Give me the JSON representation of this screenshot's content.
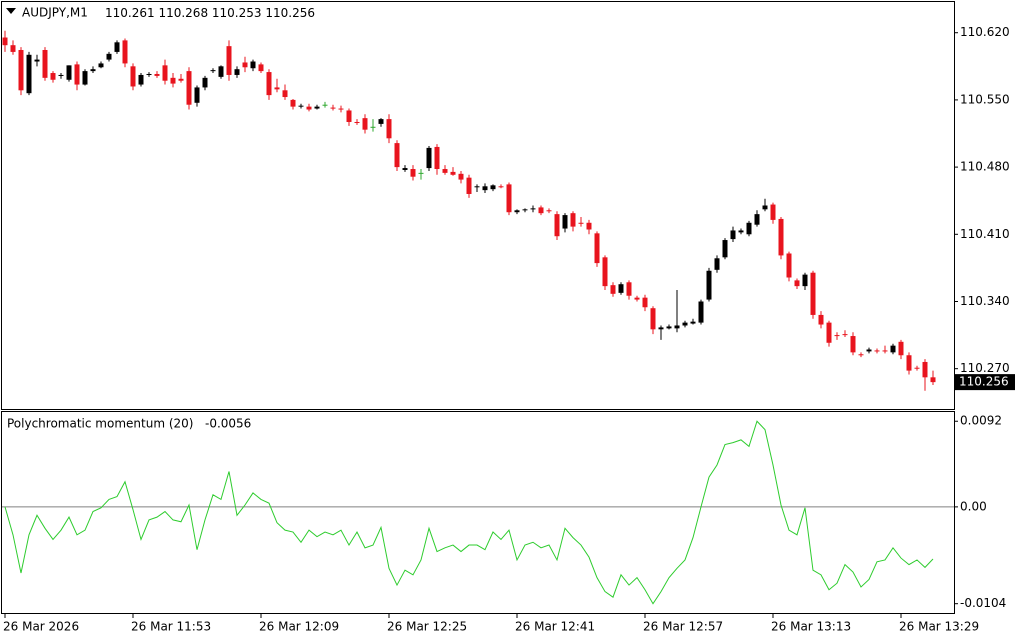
{
  "chart_data": {
    "type": "candlestick",
    "symbol": "AUDJPY,M1",
    "up_color": "#000000",
    "down_color": "#e8141e",
    "doji_color": "#2fa82f",
    "ylim": [
      110.228,
      110.652
    ],
    "yticks": [
      {
        "value": 110.62,
        "label": "110.620"
      },
      {
        "value": 110.55,
        "label": "110.550"
      },
      {
        "value": 110.48,
        "label": "110.480"
      },
      {
        "value": 110.41,
        "label": "110.410"
      },
      {
        "value": 110.34,
        "label": "110.340"
      },
      {
        "value": 110.27,
        "label": "110.270"
      }
    ],
    "xticks": [
      {
        "value": 0,
        "label": "26 Mar 2026"
      },
      {
        "value": 16,
        "label": "26 Mar 11:53"
      },
      {
        "value": 32,
        "label": "26 Mar 12:09"
      },
      {
        "value": 48,
        "label": "26 Mar 12:25"
      },
      {
        "value": 64,
        "label": "26 Mar 12:41"
      },
      {
        "value": 80,
        "label": "26 Mar 12:57"
      },
      {
        "value": 96,
        "label": "26 Mar 13:13"
      },
      {
        "value": 112,
        "label": "26 Mar 13:29"
      }
    ],
    "ohlc": [
      [
        110.615,
        110.622,
        110.6,
        110.607
      ],
      [
        110.607,
        110.612,
        110.597,
        110.6
      ],
      [
        110.602,
        110.605,
        110.555,
        110.56
      ],
      [
        110.557,
        110.6,
        110.555,
        110.597
      ],
      [
        110.59,
        110.597,
        110.585,
        110.592
      ],
      [
        110.602,
        110.605,
        110.57,
        110.573
      ],
      [
        110.578,
        110.58,
        110.568,
        110.571
      ],
      [
        110.575,
        110.578,
        110.572,
        110.576
      ],
      [
        110.571,
        110.586,
        110.569,
        110.586
      ],
      [
        110.587,
        110.59,
        110.56,
        110.566
      ],
      [
        110.566,
        110.582,
        110.565,
        110.58
      ],
      [
        110.58,
        110.585,
        110.578,
        110.582
      ],
      [
        110.584,
        110.59,
        110.583,
        110.588
      ],
      [
        110.592,
        110.6,
        110.59,
        110.598
      ],
      [
        110.6,
        110.612,
        110.598,
        110.61
      ],
      [
        110.612,
        110.614,
        110.584,
        110.588
      ],
      [
        110.585,
        110.588,
        110.56,
        110.564
      ],
      [
        110.566,
        110.578,
        110.564,
        110.576
      ],
      [
        110.576,
        110.579,
        110.574,
        110.577
      ],
      [
        110.577,
        110.58,
        110.573,
        110.575
      ],
      [
        110.586,
        110.592,
        110.566,
        110.57
      ],
      [
        110.573,
        110.578,
        110.563,
        110.567
      ],
      [
        110.572,
        110.577,
        110.568,
        110.57
      ],
      [
        110.58,
        110.584,
        110.54,
        110.545
      ],
      [
        110.547,
        110.565,
        110.543,
        110.563
      ],
      [
        110.563,
        110.575,
        110.56,
        110.573
      ],
      [
        110.58,
        110.583,
        110.578,
        110.581
      ],
      [
        110.574,
        110.586,
        110.572,
        110.585
      ],
      [
        110.606,
        110.612,
        110.57,
        110.576
      ],
      [
        110.576,
        110.585,
        110.573,
        110.582
      ],
      [
        110.589,
        110.595,
        110.579,
        110.584
      ],
      [
        110.583,
        110.592,
        110.58,
        110.59
      ],
      [
        110.587,
        110.589,
        110.578,
        110.58
      ],
      [
        110.579,
        110.582,
        110.55,
        110.555
      ],
      [
        110.563,
        110.572,
        110.558,
        110.561
      ],
      [
        110.56,
        110.566,
        110.55,
        110.553
      ],
      [
        110.55,
        110.551,
        110.54,
        110.543
      ],
      [
        110.543,
        110.546,
        110.541,
        110.544
      ],
      [
        110.543,
        110.546,
        110.538,
        110.54
      ],
      [
        110.541,
        110.545,
        110.54,
        110.543
      ],
      [
        110.545,
        110.548,
        110.542,
        110.545
      ],
      [
        110.542,
        110.545,
        110.539,
        110.541
      ],
      [
        110.541,
        110.544,
        110.537,
        110.54
      ],
      [
        110.539,
        110.541,
        110.523,
        110.527
      ],
      [
        110.527,
        110.53,
        110.524,
        110.526
      ],
      [
        110.531,
        110.535,
        110.515,
        110.519
      ],
      [
        110.522,
        110.53,
        110.517,
        110.522
      ],
      [
        110.525,
        110.531,
        110.522,
        110.53
      ],
      [
        110.53,
        110.535,
        110.505,
        110.51
      ],
      [
        110.505,
        110.508,
        110.476,
        110.48
      ],
      [
        110.477,
        110.482,
        110.475,
        110.479
      ],
      [
        110.478,
        110.482,
        110.466,
        110.47
      ],
      [
        110.474,
        110.478,
        110.467,
        110.474
      ],
      [
        110.479,
        110.502,
        110.476,
        110.5
      ],
      [
        110.501,
        110.504,
        110.472,
        110.478
      ],
      [
        110.478,
        110.482,
        110.472,
        110.474
      ],
      [
        110.475,
        110.48,
        110.471,
        110.472
      ],
      [
        110.473,
        110.476,
        110.463,
        110.467
      ],
      [
        110.469,
        110.472,
        110.448,
        110.452
      ],
      [
        110.459,
        110.462,
        110.454,
        110.46
      ],
      [
        110.456,
        110.463,
        110.453,
        110.46
      ],
      [
        110.457,
        110.462,
        110.455,
        110.461
      ],
      [
        110.46,
        110.462,
        110.458,
        110.459
      ],
      [
        110.462,
        110.464,
        110.43,
        110.433
      ],
      [
        110.433,
        110.436,
        110.431,
        110.435
      ],
      [
        110.435,
        110.437,
        110.433,
        110.436
      ],
      [
        110.436,
        110.44,
        110.433,
        110.437
      ],
      [
        110.438,
        110.44,
        110.43,
        110.432
      ],
      [
        110.435,
        110.437,
        110.432,
        110.434
      ],
      [
        110.431,
        110.434,
        110.404,
        110.408
      ],
      [
        110.416,
        110.432,
        110.412,
        110.43
      ],
      [
        110.432,
        110.434,
        110.413,
        110.418
      ],
      [
        110.422,
        110.428,
        110.418,
        110.421
      ],
      [
        110.422,
        110.425,
        110.41,
        110.415
      ],
      [
        110.411,
        110.413,
        110.376,
        110.38
      ],
      [
        110.386,
        110.388,
        110.352,
        110.356
      ],
      [
        110.357,
        110.36,
        110.345,
        110.348
      ],
      [
        110.349,
        110.36,
        110.347,
        110.358
      ],
      [
        110.36,
        110.362,
        110.342,
        110.346
      ],
      [
        110.344,
        110.346,
        110.34,
        110.342
      ],
      [
        110.344,
        110.347,
        110.33,
        110.334
      ],
      [
        110.333,
        110.335,
        110.306,
        110.311
      ],
      [
        110.311,
        110.315,
        110.3,
        110.313
      ],
      [
        110.312,
        110.316,
        110.311,
        110.314
      ],
      [
        110.312,
        110.352,
        110.308,
        110.315
      ],
      [
        110.315,
        110.32,
        110.313,
        110.318
      ],
      [
        110.317,
        110.322,
        110.316,
        110.319
      ],
      [
        110.318,
        110.342,
        110.316,
        110.34
      ],
      [
        110.342,
        110.375,
        110.34,
        110.372
      ],
      [
        110.373,
        110.388,
        110.37,
        110.385
      ],
      [
        110.386,
        110.406,
        110.384,
        110.404
      ],
      [
        110.405,
        110.418,
        110.402,
        110.414
      ],
      [
        110.412,
        110.416,
        110.41,
        110.414
      ],
      [
        110.41,
        110.424,
        110.408,
        110.422
      ],
      [
        110.42,
        110.435,
        110.418,
        110.431
      ],
      [
        110.436,
        110.447,
        110.434,
        110.44
      ],
      [
        110.441,
        110.443,
        110.421,
        110.425
      ],
      [
        110.426,
        110.428,
        110.384,
        110.388
      ],
      [
        110.39,
        110.392,
        110.361,
        110.365
      ],
      [
        110.362,
        110.364,
        110.353,
        110.356
      ],
      [
        110.356,
        110.37,
        110.352,
        110.368
      ],
      [
        110.37,
        110.372,
        110.322,
        110.326
      ],
      [
        110.326,
        110.33,
        110.312,
        110.316
      ],
      [
        110.318,
        110.32,
        110.293,
        110.297
      ],
      [
        110.305,
        110.308,
        110.3,
        110.304
      ],
      [
        110.306,
        110.31,
        110.303,
        110.305
      ],
      [
        110.304,
        110.308,
        110.284,
        110.287
      ],
      [
        110.285,
        110.287,
        110.282,
        110.284
      ],
      [
        110.288,
        110.292,
        110.286,
        110.29
      ],
      [
        110.289,
        110.291,
        110.286,
        110.288
      ],
      [
        110.289,
        110.294,
        110.286,
        110.288
      ],
      [
        110.287,
        110.296,
        110.285,
        110.294
      ],
      [
        110.298,
        110.3,
        110.28,
        110.284
      ],
      [
        110.284,
        110.287,
        110.264,
        110.268
      ],
      [
        110.271,
        110.273,
        110.268,
        110.27
      ],
      [
        110.277,
        110.28,
        110.247,
        110.261
      ],
      [
        110.261,
        110.268,
        110.253,
        110.256
      ]
    ],
    "indicator": {
      "title": "Polychromatic momentum (20)",
      "color": "#2ecc2e",
      "ylim": [
        -0.0114,
        0.0103
      ],
      "yticks": [
        0.0092,
        {
          "value": 0,
          "label": "0.00"
        },
        -0.0104
      ],
      "values": [
        0,
        -0.003,
        -0.0071,
        -0.003,
        -0.0009,
        -0.0023,
        -0.0035,
        -0.0025,
        -0.0011,
        -0.003,
        -0.0025,
        -0.0005,
        -0.0001,
        0.0008,
        0.0011,
        0.0027,
        -0.0003,
        -0.0035,
        -0.0014,
        -0.0011,
        -0.0005,
        -0.0014,
        -0.0016,
        0.0002,
        -0.0046,
        -0.0014,
        0.0013,
        0.0008,
        0.0038,
        -0.0009,
        0.0002,
        0.0015,
        0.0008,
        0.0004,
        -0.0017,
        -0.0025,
        -0.0027,
        -0.0038,
        -0.0025,
        -0.0032,
        -0.0027,
        -0.003,
        -0.0025,
        -0.0041,
        -0.0027,
        -0.0044,
        -0.0041,
        -0.0022,
        -0.0066,
        -0.0084,
        -0.0068,
        -0.0073,
        -0.0057,
        -0.0023,
        -0.0048,
        -0.0044,
        -0.0041,
        -0.0048,
        -0.0041,
        -0.0041,
        -0.0046,
        -0.0027,
        -0.0035,
        -0.0025,
        -0.0057,
        -0.0041,
        -0.0038,
        -0.0044,
        -0.0041,
        -0.0057,
        -0.0023,
        -0.0033,
        -0.0041,
        -0.0054,
        -0.0076,
        -0.0091,
        -0.0097,
        -0.0073,
        -0.0084,
        -0.0076,
        -0.0089,
        -0.0104,
        -0.0091,
        -0.0076,
        -0.0066,
        -0.0057,
        -0.0033,
        0,
        0.0032,
        0.0045,
        0.0067,
        0.0069,
        0.0072,
        0.0065,
        0.0092,
        0.0083,
        0.0045,
        0.0002,
        -0.0025,
        -0.003,
        -0.0001,
        -0.0068,
        -0.0073,
        -0.0089,
        -0.0082,
        -0.0062,
        -0.007,
        -0.0086,
        -0.0078,
        -0.0059,
        -0.0057,
        -0.0044,
        -0.0055,
        -0.0062,
        -0.0057,
        -0.0065,
        -0.0056
      ]
    }
  }
}
